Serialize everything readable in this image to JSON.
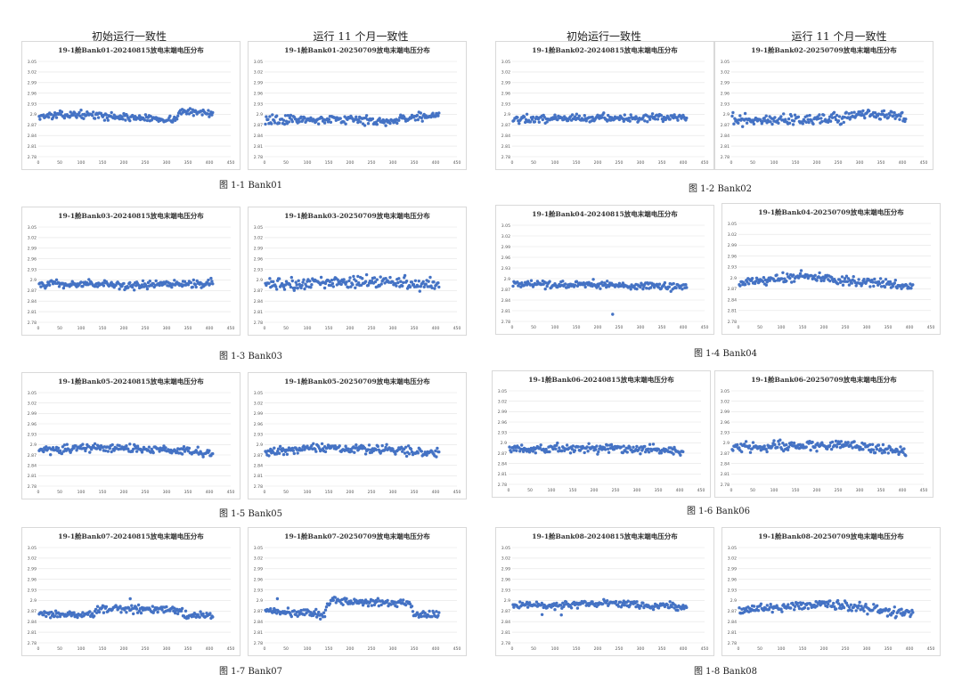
{
  "column_headers": [
    {
      "text": "初始运行一致性"
    },
    {
      "text": "运行 11 个月一致性"
    },
    {
      "text": "初始运行一致性"
    },
    {
      "text": "运行 11 个月一致性"
    }
  ],
  "style": {
    "marker_color": "#4472c4",
    "grid_color": "#e3e3e3",
    "axis_text_color": "#555555"
  },
  "captions": [
    {
      "text": "图  1-1 Bank01"
    },
    {
      "text": "图  1-2 Bank02"
    },
    {
      "text": "图  1-3 Bank03"
    },
    {
      "text": "图  1-4 Bank04"
    },
    {
      "text": "图  1-5 Bank05"
    },
    {
      "text": "图  1-6 Bank06"
    },
    {
      "text": "图  1-7 Bank07"
    },
    {
      "text": "图  1-8 Bank08"
    }
  ],
  "chart_data": [
    {
      "type": "scatter",
      "title": "19-1舱Bank01-20240815放电末端电压分布",
      "y_ticks": [
        "3.05",
        "3.02",
        "2.99",
        "2.96",
        "2.93",
        "2.9",
        "2.87",
        "2.84",
        "2.81",
        "2.78"
      ],
      "x_ticks": [
        "0",
        "50",
        "100",
        "150",
        "200",
        "250",
        "300",
        "350",
        "400",
        "450"
      ],
      "xlim": [
        0,
        450
      ],
      "ylim": [
        2.78,
        3.05
      ],
      "segments": [
        [
          0,
          2.895
        ],
        [
          100,
          2.9
        ],
        [
          200,
          2.892
        ],
        [
          320,
          2.885
        ],
        [
          330,
          2.907
        ],
        [
          410,
          2.905
        ]
      ],
      "spread": 0.009,
      "count": 200,
      "outliers": []
    },
    {
      "type": "scatter",
      "title": "19-1舱Bank01-20250709放电末端电压分布",
      "y_ticks": [
        "3.05",
        "3.02",
        "2.99",
        "2.96",
        "2.93",
        "2.9",
        "2.87",
        "2.84",
        "2.81",
        "2.78"
      ],
      "x_ticks": [
        "0",
        "50",
        "100",
        "150",
        "200",
        "250",
        "300",
        "350",
        "400",
        "450"
      ],
      "xlim": [
        0,
        450
      ],
      "ylim": [
        2.78,
        3.05
      ],
      "segments": [
        [
          0,
          2.883
        ],
        [
          150,
          2.887
        ],
        [
          300,
          2.88
        ],
        [
          360,
          2.895
        ],
        [
          410,
          2.898
        ]
      ],
      "spread": 0.012,
      "count": 200,
      "outliers": []
    },
    {
      "type": "scatter",
      "title": "19-1舱Bank02-20240815放电末端电压分布",
      "y_ticks": [
        "3.05",
        "3.02",
        "2.99",
        "2.96",
        "2.93",
        "2.9",
        "2.87",
        "2.84",
        "2.81",
        "2.78"
      ],
      "x_ticks": [
        "0",
        "50",
        "100",
        "150",
        "200",
        "250",
        "300",
        "350",
        "400",
        "450"
      ],
      "xlim": [
        0,
        450
      ],
      "ylim": [
        2.78,
        3.05
      ],
      "segments": [
        [
          0,
          2.887
        ],
        [
          200,
          2.89
        ],
        [
          410,
          2.89
        ]
      ],
      "spread": 0.01,
      "count": 200,
      "outliers": []
    },
    {
      "type": "scatter",
      "title": "19-1舱Bank02-20250709放电末端电压分布",
      "y_ticks": [
        "3.05",
        "3.02",
        "2.99",
        "2.96",
        "2.93",
        "2.9",
        "2.87",
        "2.84",
        "2.81",
        "2.78"
      ],
      "x_ticks": [
        "0",
        "50",
        "100",
        "150",
        "200",
        "250",
        "300",
        "350",
        "400",
        "450"
      ],
      "xlim": [
        0,
        450
      ],
      "ylim": [
        2.78,
        3.05
      ],
      "segments": [
        [
          0,
          2.885
        ],
        [
          260,
          2.885
        ],
        [
          280,
          2.897
        ],
        [
          410,
          2.895
        ]
      ],
      "spread": 0.014,
      "count": 200,
      "outliers": []
    },
    {
      "type": "scatter",
      "title": "19-1舱Bank03-20240815放电末端电压分布",
      "y_ticks": [
        "3.05",
        "3.02",
        "2.99",
        "2.96",
        "2.93",
        "2.9",
        "2.87",
        "2.84",
        "2.81",
        "2.78"
      ],
      "x_ticks": [
        "0",
        "50",
        "100",
        "150",
        "200",
        "250",
        "300",
        "350",
        "400",
        "450"
      ],
      "xlim": [
        0,
        450
      ],
      "ylim": [
        2.78,
        3.05
      ],
      "segments": [
        [
          0,
          2.89
        ],
        [
          200,
          2.885
        ],
        [
          410,
          2.89
        ]
      ],
      "spread": 0.011,
      "count": 200,
      "outliers": []
    },
    {
      "type": "scatter",
      "title": "19-1舱Bank03-20250709放电末端电压分布",
      "y_ticks": [
        "3.05",
        "3.02",
        "2.99",
        "2.96",
        "2.93",
        "2.9",
        "2.87",
        "2.84",
        "2.81",
        "2.78"
      ],
      "x_ticks": [
        "0",
        "50",
        "100",
        "150",
        "200",
        "250",
        "300",
        "350",
        "400",
        "450"
      ],
      "xlim": [
        0,
        450
      ],
      "ylim": [
        2.78,
        3.05
      ],
      "segments": [
        [
          0,
          2.887
        ],
        [
          200,
          2.893
        ],
        [
          410,
          2.89
        ]
      ],
      "spread": 0.016,
      "count": 200,
      "outliers": []
    },
    {
      "type": "scatter",
      "title": "19-1舱Bank04-20240815放电末端电压分布",
      "y_ticks": [
        "3.05",
        "3.02",
        "2.99",
        "2.96",
        "2.93",
        "2.9",
        "2.87",
        "2.84",
        "2.81",
        "2.78"
      ],
      "x_ticks": [
        "0",
        "50",
        "100",
        "150",
        "200",
        "250",
        "300",
        "350",
        "400",
        "450"
      ],
      "xlim": [
        0,
        450
      ],
      "ylim": [
        2.78,
        3.05
      ],
      "segments": [
        [
          0,
          2.885
        ],
        [
          200,
          2.883
        ],
        [
          410,
          2.876
        ]
      ],
      "spread": 0.01,
      "count": 200,
      "outliers": [
        [
          235,
          2.8
        ]
      ]
    },
    {
      "type": "scatter",
      "title": "19-1舱Bank04-20250709放电末端电压分布",
      "y_ticks": [
        "3.05",
        "3.02",
        "2.99",
        "2.96",
        "2.93",
        "2.9",
        "2.87",
        "2.84",
        "2.81",
        "2.78"
      ],
      "x_ticks": [
        "0",
        "50",
        "100",
        "150",
        "200",
        "250",
        "300",
        "350",
        "400",
        "450"
      ],
      "xlim": [
        0,
        450
      ],
      "ylim": [
        2.78,
        3.05
      ],
      "segments": [
        [
          0,
          2.885
        ],
        [
          150,
          2.905
        ],
        [
          280,
          2.89
        ],
        [
          410,
          2.876
        ]
      ],
      "spread": 0.012,
      "count": 200,
      "outliers": []
    },
    {
      "type": "scatter",
      "title": "19-1舱Bank05-20240815放电末端电压分布",
      "y_ticks": [
        "3.05",
        "3.02",
        "2.99",
        "2.96",
        "2.93",
        "2.9",
        "2.87",
        "2.84",
        "2.81",
        "2.78"
      ],
      "x_ticks": [
        "0",
        "50",
        "100",
        "150",
        "200",
        "250",
        "300",
        "350",
        "400",
        "450"
      ],
      "xlim": [
        0,
        450
      ],
      "ylim": [
        2.78,
        3.05
      ],
      "segments": [
        [
          0,
          2.883
        ],
        [
          150,
          2.89
        ],
        [
          300,
          2.885
        ],
        [
          410,
          2.875
        ]
      ],
      "spread": 0.011,
      "count": 200,
      "outliers": []
    },
    {
      "type": "scatter",
      "title": "19-1舱Bank05-20250709放电末端电压分布",
      "y_ticks": [
        "3.05",
        "3.02",
        "2.99",
        "2.96",
        "2.93",
        "2.9",
        "2.87",
        "2.84",
        "2.81",
        "2.78"
      ],
      "x_ticks": [
        "0",
        "50",
        "100",
        "150",
        "200",
        "250",
        "300",
        "350",
        "400",
        "450"
      ],
      "xlim": [
        0,
        450
      ],
      "ylim": [
        2.78,
        3.05
      ],
      "segments": [
        [
          0,
          2.878
        ],
        [
          150,
          2.892
        ],
        [
          300,
          2.885
        ],
        [
          410,
          2.874
        ]
      ],
      "spread": 0.012,
      "count": 200,
      "outliers": []
    },
    {
      "type": "scatter",
      "title": "19-1舱Bank06-20240815放电末端电压分布",
      "y_ticks": [
        "3.05",
        "3.02",
        "2.99",
        "2.96",
        "2.93",
        "2.9",
        "2.87",
        "2.84",
        "2.81",
        "2.78"
      ],
      "x_ticks": [
        "0",
        "50",
        "100",
        "150",
        "200",
        "250",
        "300",
        "350",
        "400",
        "450"
      ],
      "xlim": [
        0,
        450
      ],
      "ylim": [
        2.78,
        3.05
      ],
      "segments": [
        [
          0,
          2.882
        ],
        [
          200,
          2.885
        ],
        [
          410,
          2.876
        ]
      ],
      "spread": 0.012,
      "count": 200,
      "outliers": []
    },
    {
      "type": "scatter",
      "title": "19-1舱Bank06-20250709放电末端电压分布",
      "y_ticks": [
        "3.05",
        "3.02",
        "2.99",
        "2.96",
        "2.93",
        "2.9",
        "2.87",
        "2.84",
        "2.81",
        "2.78"
      ],
      "x_ticks": [
        "0",
        "50",
        "100",
        "150",
        "200",
        "250",
        "300",
        "350",
        "400",
        "450"
      ],
      "xlim": [
        0,
        450
      ],
      "ylim": [
        2.78,
        3.05
      ],
      "segments": [
        [
          0,
          2.885
        ],
        [
          280,
          2.895
        ],
        [
          410,
          2.872
        ]
      ],
      "spread": 0.013,
      "count": 200,
      "outliers": []
    },
    {
      "type": "scatter",
      "title": "19-1舱Bank07-20240815放电末端电压分布",
      "y_ticks": [
        "3.05",
        "3.02",
        "2.99",
        "2.96",
        "2.93",
        "2.9",
        "2.87",
        "2.84",
        "2.81",
        "2.78"
      ],
      "x_ticks": [
        "0",
        "50",
        "100",
        "150",
        "200",
        "250",
        "300",
        "350",
        "400",
        "450"
      ],
      "xlim": [
        0,
        450
      ],
      "ylim": [
        2.78,
        3.05
      ],
      "segments": [
        [
          0,
          2.862
        ],
        [
          130,
          2.858
        ],
        [
          140,
          2.876
        ],
        [
          330,
          2.874
        ],
        [
          345,
          2.858
        ],
        [
          410,
          2.855
        ]
      ],
      "spread": 0.01,
      "count": 200,
      "outliers": [
        [
          215,
          2.905
        ]
      ]
    },
    {
      "type": "scatter",
      "title": "19-1舱Bank07-20250709放电末端电压分布",
      "y_ticks": [
        "3.05",
        "3.02",
        "2.99",
        "2.96",
        "2.93",
        "2.9",
        "2.87",
        "2.84",
        "2.81",
        "2.78"
      ],
      "x_ticks": [
        "0",
        "50",
        "100",
        "150",
        "200",
        "250",
        "300",
        "350",
        "400",
        "450"
      ],
      "xlim": [
        0,
        450
      ],
      "ylim": [
        2.78,
        3.05
      ],
      "segments": [
        [
          0,
          2.87
        ],
        [
          140,
          2.86
        ],
        [
          150,
          2.898
        ],
        [
          340,
          2.893
        ],
        [
          350,
          2.86
        ],
        [
          410,
          2.862
        ]
      ],
      "spread": 0.011,
      "count": 200,
      "outliers": [
        [
          30,
          2.905
        ]
      ]
    },
    {
      "type": "scatter",
      "title": "19-1舱Bank08-20240815放电末端电压分布",
      "y_ticks": [
        "3.05",
        "3.02",
        "2.99",
        "2.96",
        "2.93",
        "2.9",
        "2.87",
        "2.84",
        "2.81",
        "2.78"
      ],
      "x_ticks": [
        "0",
        "50",
        "100",
        "150",
        "200",
        "250",
        "300",
        "350",
        "400",
        "450"
      ],
      "xlim": [
        0,
        450
      ],
      "ylim": [
        2.78,
        3.05
      ],
      "segments": [
        [
          0,
          2.883
        ],
        [
          200,
          2.893
        ],
        [
          410,
          2.882
        ]
      ],
      "spread": 0.01,
      "count": 200,
      "outliers": [
        [
          70,
          2.86
        ],
        [
          115,
          2.859
        ]
      ]
    },
    {
      "type": "scatter",
      "title": "19-1舱Bank08-20250709放电末端电压分布",
      "y_ticks": [
        "3.05",
        "3.02",
        "2.99",
        "2.96",
        "2.93",
        "2.9",
        "2.87",
        "2.84",
        "2.81",
        "2.78"
      ],
      "x_ticks": [
        "0",
        "50",
        "100",
        "150",
        "200",
        "250",
        "300",
        "350",
        "400",
        "450"
      ],
      "xlim": [
        0,
        450
      ],
      "ylim": [
        2.78,
        3.05
      ],
      "segments": [
        [
          0,
          2.87
        ],
        [
          200,
          2.893
        ],
        [
          410,
          2.862
        ]
      ],
      "spread": 0.012,
      "count": 200,
      "outliers": []
    }
  ]
}
